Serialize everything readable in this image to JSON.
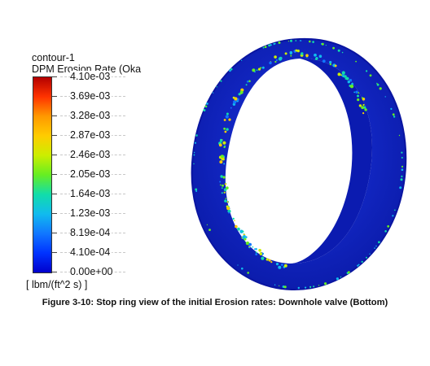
{
  "chart_data": {
    "type": "heatmap",
    "title": "contour-1",
    "subtitle": "DPM Erosion Rate (Oka",
    "units": "[ lbm/(ft^2 s) ]",
    "range": [
      0,
      0.0041
    ],
    "legend_position": "left",
    "tick_labels": [
      "4.10e-03",
      "3.69e-03",
      "3.28e-03",
      "2.87e-03",
      "2.46e-03",
      "2.05e-03",
      "1.64e-03",
      "1.23e-03",
      "8.19e-04",
      "4.10e-04",
      "0.00e+00"
    ],
    "tick_values": [
      0.0041,
      0.00369,
      0.00328,
      0.00287,
      0.00246,
      0.00205,
      0.00164,
      0.00123,
      0.000819,
      0.00041,
      0.0
    ],
    "colormap": [
      "#b30000",
      "#ff3300",
      "#ff9900",
      "#ffcc00",
      "#ccee00",
      "#66ee22",
      "#11ddaa",
      "#11bbee",
      "#1177ff",
      "#0033ff",
      "#0000cc"
    ]
  },
  "caption": "Figure 3-10: Stop ring view of the initial Erosion rates: Downhole valve (Bottom)",
  "ring": {
    "base_color": "#0f23c8",
    "inner_color": "#0a18a8",
    "edge_color": "#1a2fd8"
  }
}
